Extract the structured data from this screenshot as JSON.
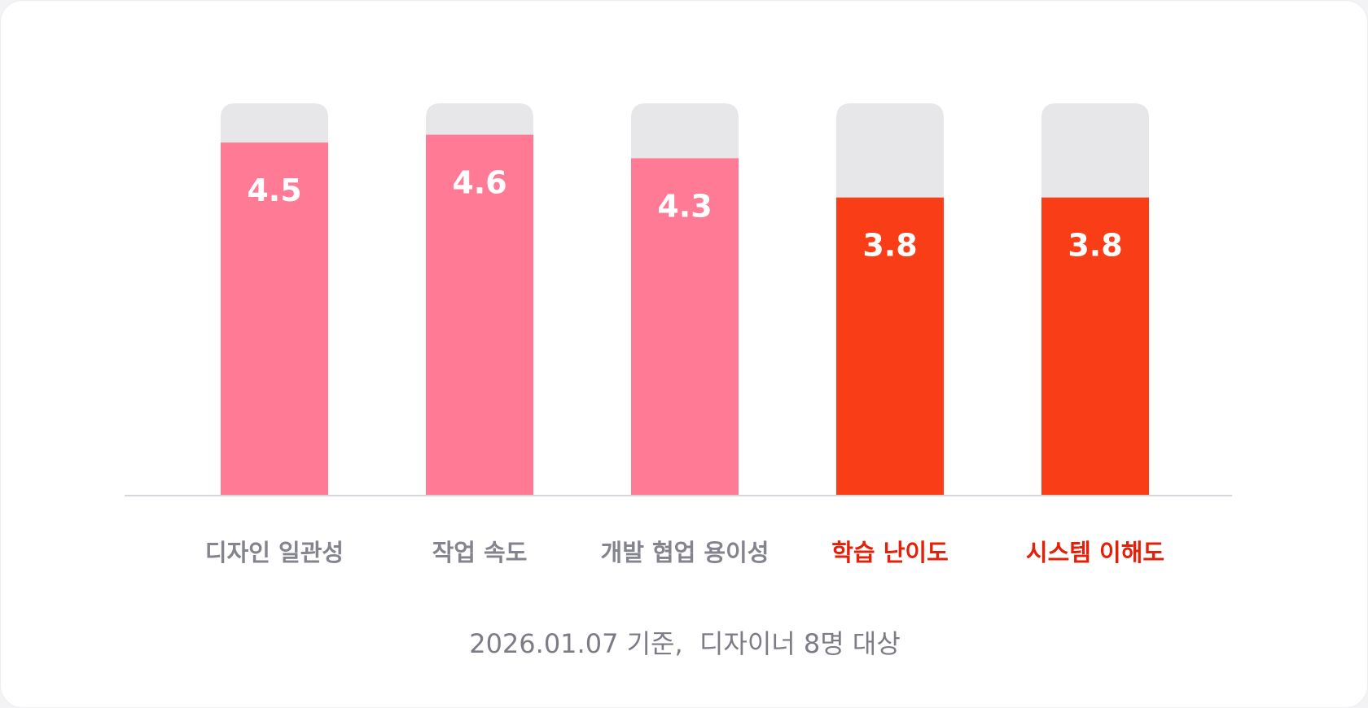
{
  "chart_data": {
    "type": "bar",
    "categories": [
      "디자인 일관성",
      "작업 속도",
      "개발 협업 용이성",
      "학습 난이도",
      "시스템 이해도"
    ],
    "values": [
      4.5,
      4.6,
      4.3,
      3.8,
      3.8
    ],
    "value_labels": [
      "4.5",
      "4.6",
      "4.3",
      "3.8",
      "3.8"
    ],
    "ylim": [
      0,
      5
    ],
    "grid": false,
    "highlighted": [
      false,
      false,
      false,
      true,
      true
    ],
    "colors": {
      "normal": "#ff7a95",
      "highlight": "#f93d16",
      "track": "#e7e7ea",
      "axis": "#d6d6dc",
      "normal_label": "#84848e",
      "highlight_label": "#e5200a"
    }
  },
  "footnote": "2026.01.07 기준,  디자이너 8명 대상"
}
